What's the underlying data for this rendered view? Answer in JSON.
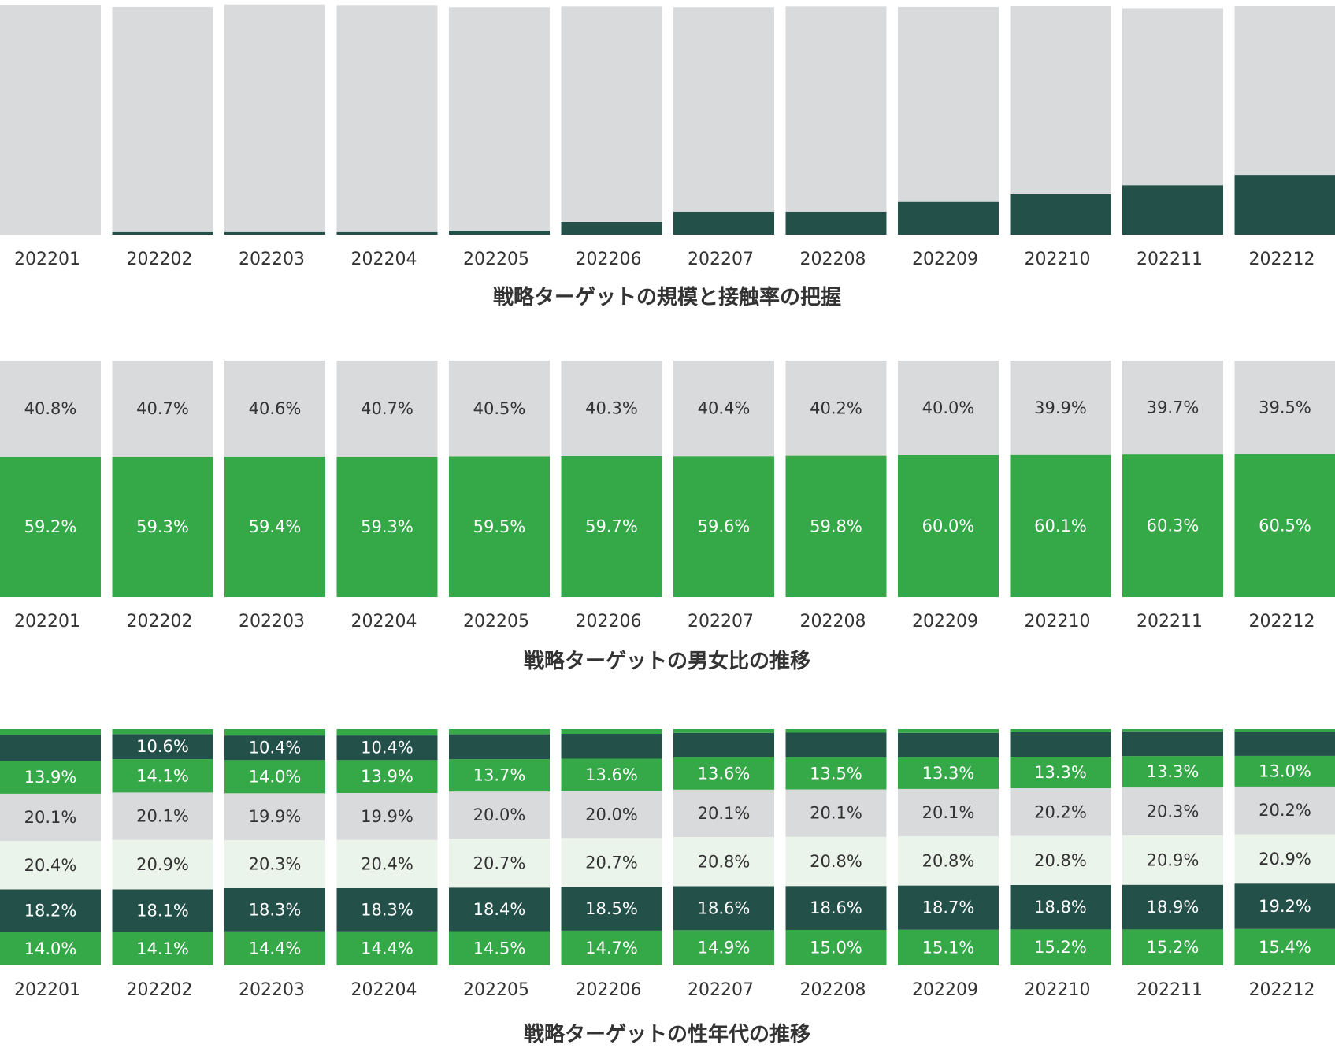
{
  "colors": {
    "gray": "#d9dadb",
    "green": "#35a847",
    "dark": "#24504a",
    "light": "#ebf4ea",
    "text_dark": "#333333",
    "text_light": "#ffffff"
  },
  "chart_data": [
    {
      "type": "bar",
      "stacked": true,
      "title": "戦略ターゲットの規模と接触率の把握",
      "categories": [
        "202201",
        "202202",
        "202203",
        "202204",
        "202205",
        "202206",
        "202207",
        "202208",
        "202209",
        "202210",
        "202211",
        "202212"
      ],
      "ylim": [
        0,
        100
      ],
      "series": [
        {
          "color": "#24504a",
          "values": [
            0.0,
            1.1,
            1.1,
            1.1,
            1.7,
            5.5,
            10.0,
            10.0,
            14.5,
            17.5,
            21.5,
            26.0
          ]
        },
        {
          "color": "#d9dadb",
          "values": [
            100.0,
            97.9,
            99.0,
            98.8,
            97.2,
            93.7,
            88.9,
            89.2,
            84.5,
            81.8,
            77.0,
            73.3
          ]
        }
      ],
      "show_labels": false
    },
    {
      "type": "bar",
      "stacked": true,
      "title": "戦略ターゲットの男女比の推移",
      "categories": [
        "202201",
        "202202",
        "202203",
        "202204",
        "202205",
        "202206",
        "202207",
        "202208",
        "202209",
        "202210",
        "202211",
        "202212"
      ],
      "ylim": [
        0,
        100
      ],
      "series": [
        {
          "color": "#35a847",
          "label_color": "#ffffff",
          "values": [
            59.2,
            59.3,
            59.4,
            59.3,
            59.5,
            59.7,
            59.6,
            59.8,
            60.0,
            60.1,
            60.3,
            60.5
          ],
          "labels": [
            "59.2%",
            "59.3%",
            "59.4%",
            "59.3%",
            "59.5%",
            "59.7%",
            "59.6%",
            "59.8%",
            "60.0%",
            "60.1%",
            "60.3%",
            "60.5%"
          ]
        },
        {
          "color": "#d9dadb",
          "label_color": "#333333",
          "values": [
            40.8,
            40.7,
            40.6,
            40.7,
            40.5,
            40.3,
            40.4,
            40.2,
            40.0,
            39.9,
            39.7,
            39.5
          ],
          "labels": [
            "40.8%",
            "40.7%",
            "40.6%",
            "40.7%",
            "40.5%",
            "40.3%",
            "40.4%",
            "40.2%",
            "40.0%",
            "39.9%",
            "39.7%",
            "39.5%"
          ]
        }
      ],
      "show_labels": true
    },
    {
      "type": "bar",
      "stacked": true,
      "title": "戦略ターゲットの性年代の推移",
      "categories": [
        "202201",
        "202202",
        "202203",
        "202204",
        "202205",
        "202206",
        "202207",
        "202208",
        "202209",
        "202210",
        "202211",
        "202212"
      ],
      "ylim": [
        0,
        100
      ],
      "series": [
        {
          "color": "#35a847",
          "label_color": "#ffffff",
          "values": [
            14.0,
            14.1,
            14.4,
            14.4,
            14.5,
            14.7,
            14.9,
            15.0,
            15.1,
            15.2,
            15.2,
            15.4
          ],
          "labels": [
            "14.0%",
            "14.1%",
            "14.4%",
            "14.4%",
            "14.5%",
            "14.7%",
            "14.9%",
            "15.0%",
            "15.1%",
            "15.2%",
            "15.2%",
            "15.4%"
          ]
        },
        {
          "color": "#24504a",
          "label_color": "#ffffff",
          "values": [
            18.2,
            18.1,
            18.3,
            18.3,
            18.4,
            18.5,
            18.6,
            18.6,
            18.7,
            18.8,
            18.9,
            19.2
          ],
          "labels": [
            "18.2%",
            "18.1%",
            "18.3%",
            "18.3%",
            "18.4%",
            "18.5%",
            "18.6%",
            "18.6%",
            "18.7%",
            "18.8%",
            "18.9%",
            "19.2%"
          ]
        },
        {
          "color": "#ebf4ea",
          "label_color": "#333333",
          "values": [
            20.4,
            20.9,
            20.3,
            20.4,
            20.7,
            20.7,
            20.8,
            20.8,
            20.8,
            20.8,
            20.9,
            20.9
          ],
          "labels": [
            "20.4%",
            "20.9%",
            "20.3%",
            "20.4%",
            "20.7%",
            "20.7%",
            "20.8%",
            "20.8%",
            "20.8%",
            "20.8%",
            "20.9%",
            "20.9%"
          ]
        },
        {
          "color": "#d9dadb",
          "label_color": "#333333",
          "values": [
            20.1,
            20.1,
            19.9,
            19.9,
            20.0,
            20.0,
            20.1,
            20.1,
            20.1,
            20.2,
            20.3,
            20.2
          ],
          "labels": [
            "20.1%",
            "20.1%",
            "19.9%",
            "19.9%",
            "20.0%",
            "20.0%",
            "20.1%",
            "20.1%",
            "20.1%",
            "20.2%",
            "20.3%",
            "20.2%"
          ]
        },
        {
          "color": "#35a847",
          "label_color": "#ffffff",
          "values": [
            13.9,
            14.1,
            14.0,
            13.9,
            13.7,
            13.6,
            13.6,
            13.5,
            13.3,
            13.3,
            13.3,
            13.0
          ],
          "labels": [
            "13.9%",
            "14.1%",
            "14.0%",
            "13.9%",
            "13.7%",
            "13.6%",
            "13.6%",
            "13.5%",
            "13.3%",
            "13.3%",
            "13.3%",
            "13.0%"
          ]
        },
        {
          "color": "#24504a",
          "label_color": "#ffffff",
          "values": [
            11.0,
            10.6,
            10.4,
            10.4,
            10.5,
            10.5,
            10.4,
            10.5,
            10.4,
            10.4,
            10.5,
            10.3
          ],
          "labels": [
            "",
            "10.6%",
            "10.4%",
            "10.4%",
            "",
            "",
            "",
            "",
            "",
            "",
            "",
            ""
          ]
        },
        {
          "color": "#35a847",
          "label_color": "#ffffff",
          "values": [
            2.4,
            2.1,
            2.7,
            2.7,
            2.2,
            2.0,
            1.6,
            1.5,
            1.6,
            1.3,
            0.9,
            1.0
          ],
          "labels": [
            "",
            "",
            "",
            "",
            "",
            "",
            "",
            "",
            "",
            "",
            "",
            ""
          ]
        }
      ],
      "show_labels": true
    }
  ]
}
